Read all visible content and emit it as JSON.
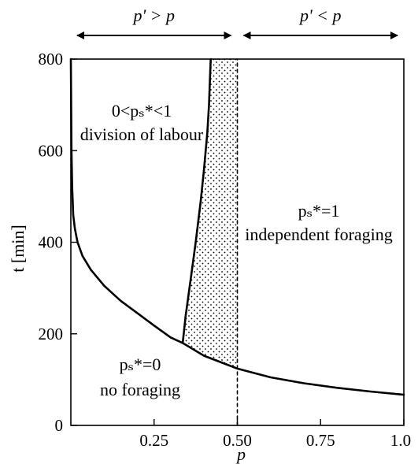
{
  "chart_data": {
    "type": "line",
    "xlabel": "p",
    "ylabel": "t [min]",
    "xlim": [
      0,
      1.0
    ],
    "ylim": [
      0,
      800
    ],
    "x_ticks": [
      0.25,
      0.5,
      0.75,
      1.0
    ],
    "x_tick_labels": [
      "0.25",
      "0.50",
      "0.75",
      "1.0"
    ],
    "y_ticks": [
      0,
      200,
      400,
      600,
      800
    ],
    "y_tick_labels": [
      "0",
      "200",
      "400",
      "600",
      "800"
    ],
    "grid": false,
    "series": [
      {
        "style": "solid",
        "x": [
          0.0,
          0.002,
          0.004,
          0.007,
          0.012,
          0.02,
          0.035,
          0.06,
          0.1,
          0.15,
          0.2,
          0.25,
          0.3,
          0.336,
          0.4,
          0.5,
          0.6,
          0.7,
          0.8,
          0.9,
          1.0
        ],
        "y": [
          800,
          600,
          520,
          460,
          430,
          400,
          370,
          340,
          305,
          272,
          245,
          218,
          192,
          180,
          152,
          124,
          105,
          92,
          82,
          74,
          67
        ]
      },
      {
        "style": "solid",
        "x": [
          0.336,
          0.345,
          0.36,
          0.375,
          0.39,
          0.4,
          0.41,
          0.415,
          0.418,
          0.42
        ],
        "y": [
          180,
          240,
          320,
          400,
          490,
          560,
          640,
          700,
          760,
          800
        ]
      },
      {
        "style": "dashed",
        "x": [
          0.5,
          0.5
        ],
        "y": [
          0,
          800
        ]
      }
    ],
    "shaded_region": {
      "pattern": "dots",
      "between": "right boundary curve and p = 0.50"
    },
    "top_arrows": [
      {
        "label": "p' > p",
        "from": 0,
        "to": 0.5
      },
      {
        "label": "p' < p",
        "from": 0.5,
        "to": 1.0
      }
    ],
    "annotations": [
      {
        "line1": "0<pₛ*<1",
        "line2": "division of labour"
      },
      {
        "line1": "pₛ*=1",
        "line2": "independent foraging"
      },
      {
        "line1": "pₛ*=0",
        "line2": "no foraging"
      }
    ]
  }
}
